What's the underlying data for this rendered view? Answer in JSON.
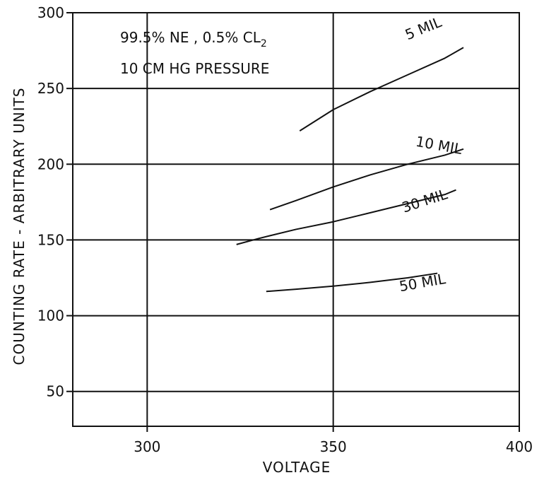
{
  "chart_data": {
    "type": "line",
    "xlabel": "VOLTAGE",
    "ylabel": "COUNTING RATE - ARBITRARY UNITS",
    "xlim": [
      280,
      400
    ],
    "ylim": [
      27,
      300
    ],
    "x_ticks": [
      "300",
      "350",
      "400"
    ],
    "y_ticks": [
      "300",
      "250",
      "200",
      "150",
      "100",
      "50"
    ],
    "annotation_lines": [
      "99.5% NE , 0.5% CL",
      "10 CM HG PRESSURE"
    ],
    "annotation_subscript": "2",
    "grid": true,
    "series": [
      {
        "name": "5 MIL",
        "x": [
          341,
          350,
          360,
          370,
          380,
          385
        ],
        "y": [
          222,
          236,
          248,
          259,
          270,
          277
        ]
      },
      {
        "name": "10 MIL",
        "x": [
          333,
          340,
          350,
          360,
          370,
          380,
          385
        ],
        "y": [
          170,
          176,
          185,
          193,
          200,
          206,
          210
        ]
      },
      {
        "name": "30 MIL",
        "x": [
          324,
          330,
          340,
          350,
          360,
          370,
          380,
          383
        ],
        "y": [
          147,
          151,
          157,
          162,
          168,
          174,
          180,
          183
        ]
      },
      {
        "name": "50 MIL",
        "x": [
          332,
          340,
          350,
          360,
          370,
          378
        ],
        "y": [
          116,
          117.5,
          119.5,
          122,
          125,
          128
        ]
      }
    ]
  }
}
